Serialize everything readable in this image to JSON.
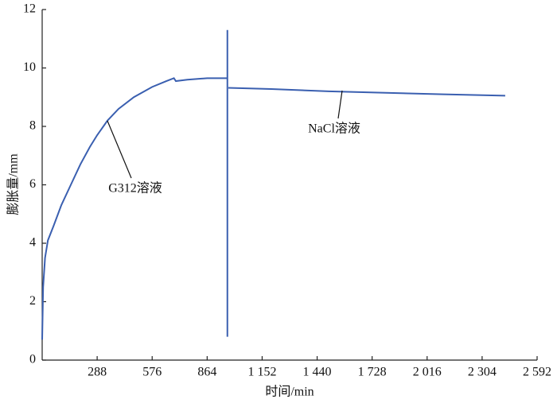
{
  "chart_data": {
    "type": "line",
    "xlabel": "时间/min",
    "ylabel": "膨胀量/mm",
    "series": [
      {
        "name": "G312溶液",
        "color": "#3a5fb0",
        "x": [
          0,
          5,
          15,
          30,
          60,
          100,
          150,
          200,
          250,
          288,
          342,
          400,
          480,
          576,
          650,
          690,
          700,
          760,
          864,
          970
        ],
        "values": [
          0.7,
          2.5,
          3.5,
          4.1,
          4.6,
          5.3,
          6.0,
          6.7,
          7.3,
          7.7,
          8.2,
          8.6,
          9.0,
          9.35,
          9.55,
          9.65,
          9.55,
          9.6,
          9.65,
          9.65
        ]
      },
      {
        "color": "#3a5fb0",
        "x": [
          970,
          970
        ],
        "values": [
          0.8,
          11.3
        ]
      },
      {
        "name": "NaCl溶液",
        "color": "#3a5fb0",
        "x": [
          975,
          1200,
          1500,
          1800,
          2100,
          2425
        ],
        "values": [
          9.32,
          9.28,
          9.2,
          9.15,
          9.1,
          9.05
        ]
      }
    ],
    "xlim": [
      0,
      2592
    ],
    "xticks": [
      288,
      576,
      864,
      {
        "value": 1152,
        "label": "1 152"
      },
      {
        "value": 1440,
        "label": "1 440"
      },
      {
        "value": 1728,
        "label": "1 728"
      },
      {
        "value": 2016,
        "label": "2 016"
      },
      {
        "value": 2304,
        "label": "2 304"
      },
      {
        "value": 2592,
        "label": "2 592"
      }
    ],
    "ylim": [
      0,
      12
    ],
    "yticks": [
      0,
      2,
      4,
      6,
      8,
      10,
      12
    ],
    "grid": false
  }
}
